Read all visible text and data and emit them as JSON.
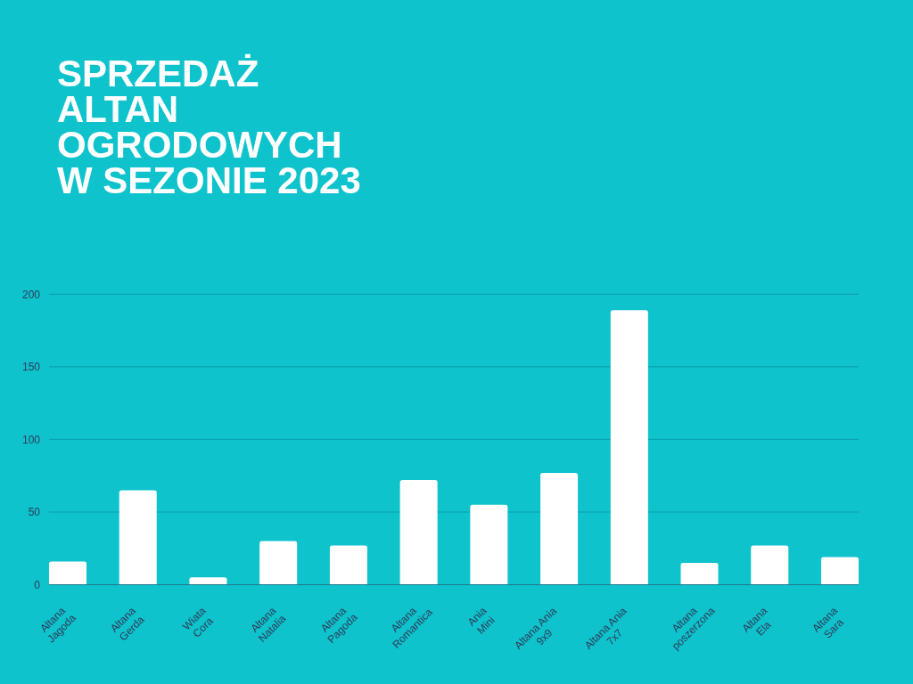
{
  "chart_data": {
    "type": "bar",
    "title": "SPRZEDAŻ ALTAN OGRODOWYCH W SEZONIE 2023",
    "categories": [
      "Altana Jagoda",
      "Altana Gerda",
      "Wiata Cora",
      "Altana Natalia",
      "Altana Pagoda",
      "Altana Romantica",
      "Ania Mini",
      "Altana Ania 9x9",
      "Altana Ania 7x7",
      "Altana poszerzona",
      "Altana Ela",
      "Altana Sara"
    ],
    "values": [
      16,
      65,
      5,
      30,
      27,
      72,
      55,
      77,
      189,
      15,
      27,
      19
    ],
    "color": "#ffffff",
    "ylim": [
      0,
      200
    ],
    "yticks": [
      0,
      50,
      100,
      150,
      200
    ],
    "grid": "y"
  }
}
